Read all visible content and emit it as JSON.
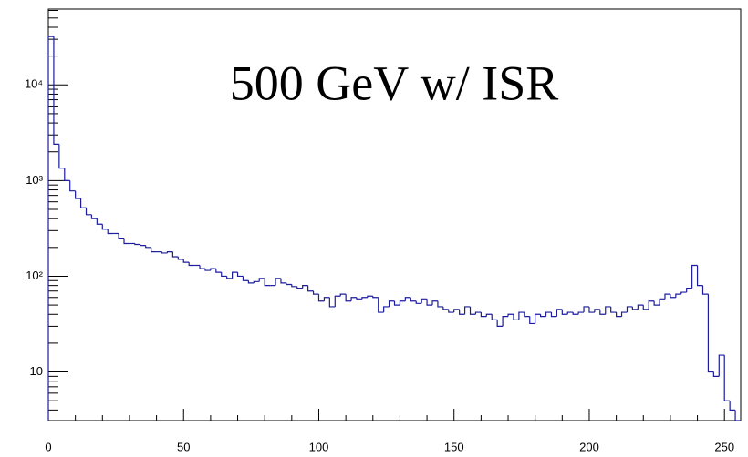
{
  "chart_data": {
    "type": "histogram",
    "title": "500 GeV w/ ISR",
    "bins": [
      0,
      2,
      4,
      6,
      8,
      10,
      12,
      14,
      16,
      18,
      20,
      22,
      24,
      26,
      28,
      30,
      32,
      34,
      36,
      38,
      40,
      42,
      44,
      46,
      48,
      50,
      52,
      54,
      56,
      58,
      60,
      62,
      64,
      66,
      68,
      70,
      72,
      74,
      76,
      78,
      80,
      82,
      84,
      86,
      88,
      90,
      92,
      94,
      96,
      98,
      100,
      102,
      104,
      106,
      108,
      110,
      112,
      114,
      116,
      118,
      120,
      122,
      124,
      126,
      128,
      130,
      132,
      134,
      136,
      138,
      140,
      142,
      144,
      146,
      148,
      150,
      152,
      154,
      156,
      158,
      160,
      162,
      164,
      166,
      168,
      170,
      172,
      174,
      176,
      178,
      180,
      182,
      184,
      186,
      188,
      190,
      192,
      194,
      196,
      198,
      200,
      202,
      204,
      206,
      208,
      210,
      212,
      214,
      216,
      218,
      220,
      222,
      224,
      226,
      228,
      230,
      232,
      234,
      236,
      238,
      240,
      242,
      244,
      246,
      248,
      250,
      252,
      254,
      256
    ],
    "counts": [
      32000,
      2400,
      1350,
      1000,
      780,
      650,
      520,
      440,
      400,
      350,
      310,
      280,
      280,
      250,
      220,
      220,
      215,
      210,
      200,
      180,
      180,
      175,
      180,
      160,
      150,
      140,
      130,
      130,
      120,
      115,
      120,
      110,
      100,
      95,
      110,
      100,
      90,
      85,
      88,
      95,
      80,
      80,
      95,
      85,
      82,
      78,
      75,
      80,
      70,
      65,
      55,
      60,
      48,
      62,
      65,
      55,
      60,
      58,
      60,
      62,
      60,
      42,
      48,
      55,
      50,
      55,
      60,
      55,
      52,
      58,
      50,
      55,
      48,
      45,
      42,
      45,
      40,
      48,
      40,
      42,
      38,
      40,
      35,
      30,
      38,
      40,
      35,
      42,
      38,
      32,
      40,
      38,
      42,
      38,
      45,
      40,
      42,
      40,
      42,
      48,
      42,
      45,
      40,
      48,
      42,
      38,
      42,
      48,
      45,
      50,
      45,
      55,
      50,
      58,
      65,
      60,
      65,
      68,
      75,
      130,
      80,
      65,
      10,
      9,
      15,
      5,
      4,
      0
    ],
    "color": "#1c1c9c",
    "xlim": [
      0,
      256
    ],
    "xticks": [
      0,
      50,
      100,
      150,
      200,
      250
    ],
    "ylim": [
      3.1,
      62000
    ],
    "log_y": true,
    "yticks": [
      10,
      {
        "value": 100,
        "label": "10²"
      },
      {
        "value": 1000,
        "label": "10³"
      },
      {
        "value": 10000,
        "label": "10⁴"
      }
    ]
  }
}
